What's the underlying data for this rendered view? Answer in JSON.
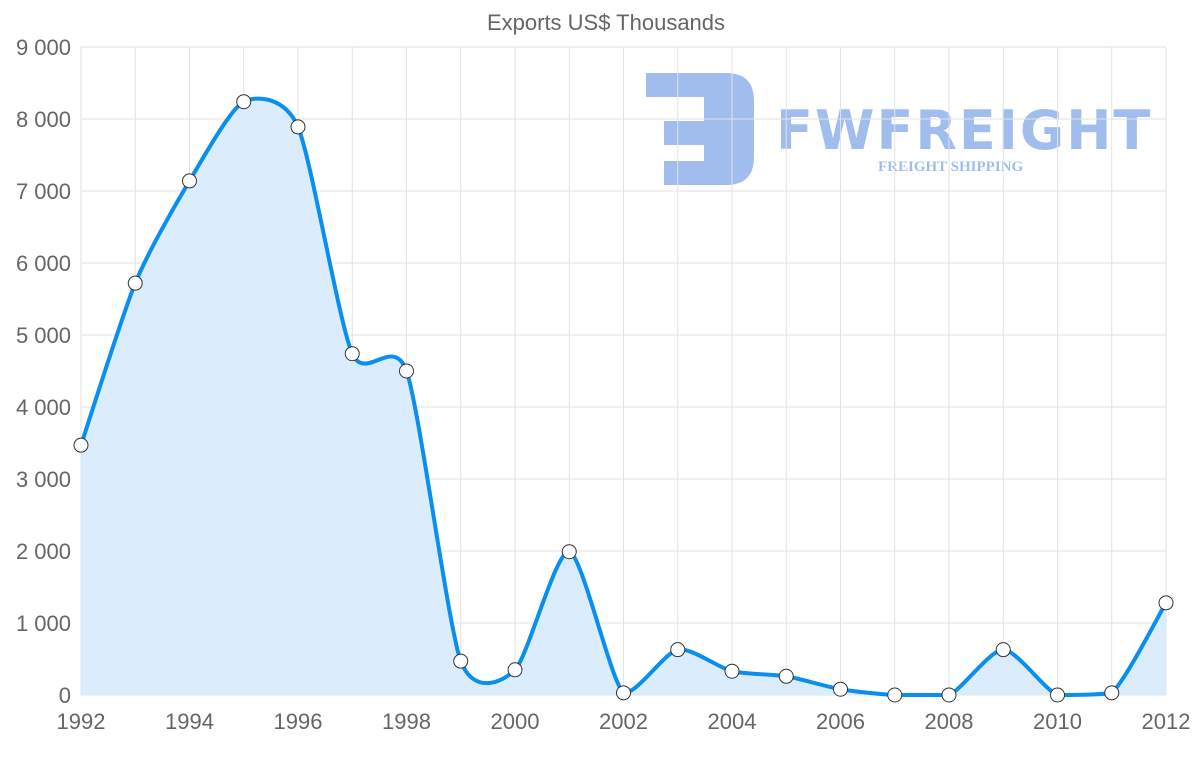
{
  "watermark": {
    "name": "FWFREIGHT",
    "subtitle": "FREIGHT SHIPPING"
  },
  "colors": {
    "line": "#0a8ff0",
    "fill": "#d9ecfc",
    "grid": "#e2e2e2",
    "text": "#666666",
    "logo": "#2f6fd8"
  },
  "chart_data": {
    "type": "area",
    "title": "Exports US$ Thousands",
    "xlabel": "",
    "ylabel": "",
    "x": [
      1992,
      1993,
      1994,
      1995,
      1996,
      1997,
      1998,
      1999,
      2000,
      2001,
      2002,
      2003,
      2004,
      2005,
      2006,
      2007,
      2008,
      2009,
      2010,
      2011,
      2012
    ],
    "values": [
      3470,
      5720,
      7140,
      8240,
      7890,
      4740,
      4500,
      470,
      350,
      1990,
      30,
      630,
      330,
      260,
      80,
      0,
      0,
      630,
      0,
      30,
      1280
    ],
    "ylim": [
      0,
      9000
    ],
    "yticks": [
      0,
      1000,
      2000,
      3000,
      4000,
      5000,
      6000,
      7000,
      8000,
      9000
    ],
    "ytick_labels": [
      "0",
      "1 000",
      "2 000",
      "3 000",
      "4 000",
      "5 000",
      "6 000",
      "7 000",
      "8 000",
      "9 000"
    ],
    "xtick_labels": [
      "1992",
      "1994",
      "1996",
      "1998",
      "2000",
      "2002",
      "2004",
      "2006",
      "2008",
      "2010",
      "2012"
    ],
    "grid": true,
    "legend": "none"
  }
}
